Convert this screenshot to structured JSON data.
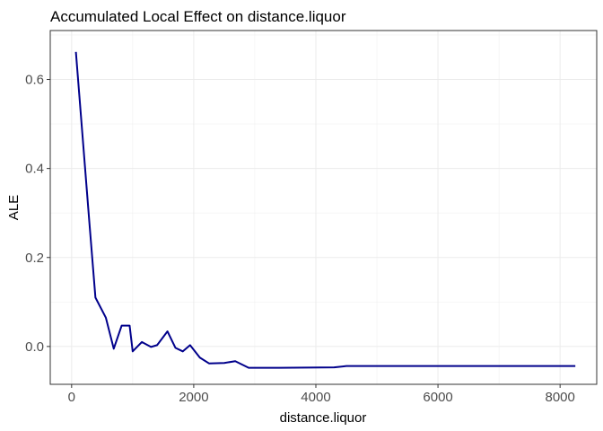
{
  "chart_data": {
    "type": "line",
    "title": "Accumulated Local Effect on distance.liquor",
    "xlabel": "distance.liquor",
    "ylabel": "ALE",
    "xlim": [
      -350,
      8600
    ],
    "ylim": [
      -0.085,
      0.71
    ],
    "x_ticks": [
      0,
      2000,
      4000,
      6000,
      8000
    ],
    "x_tick_labels": [
      "0",
      "2000",
      "4000",
      "6000",
      "8000"
    ],
    "y_ticks": [
      0.0,
      0.2,
      0.4,
      0.6
    ],
    "y_tick_labels": [
      "0.0",
      "0.2",
      "0.4",
      "0.6"
    ],
    "grid": true,
    "panel_border": true,
    "line_color": "#00008B",
    "series": [
      {
        "x": [
          70,
          290,
          390,
          560,
          690,
          820,
          950,
          1000,
          1150,
          1300,
          1400,
          1570,
          1700,
          1820,
          1940,
          2100,
          2250,
          2500,
          2680,
          2900,
          3400,
          4300,
          4500,
          8250
        ],
        "y": [
          0.662,
          0.28,
          0.11,
          0.065,
          -0.005,
          0.047,
          0.047,
          -0.011,
          0.01,
          -0.001,
          0.003,
          0.034,
          -0.003,
          -0.011,
          0.003,
          -0.025,
          -0.038,
          -0.037,
          -0.033,
          -0.048,
          -0.048,
          -0.047,
          -0.044,
          -0.044
        ]
      }
    ]
  }
}
